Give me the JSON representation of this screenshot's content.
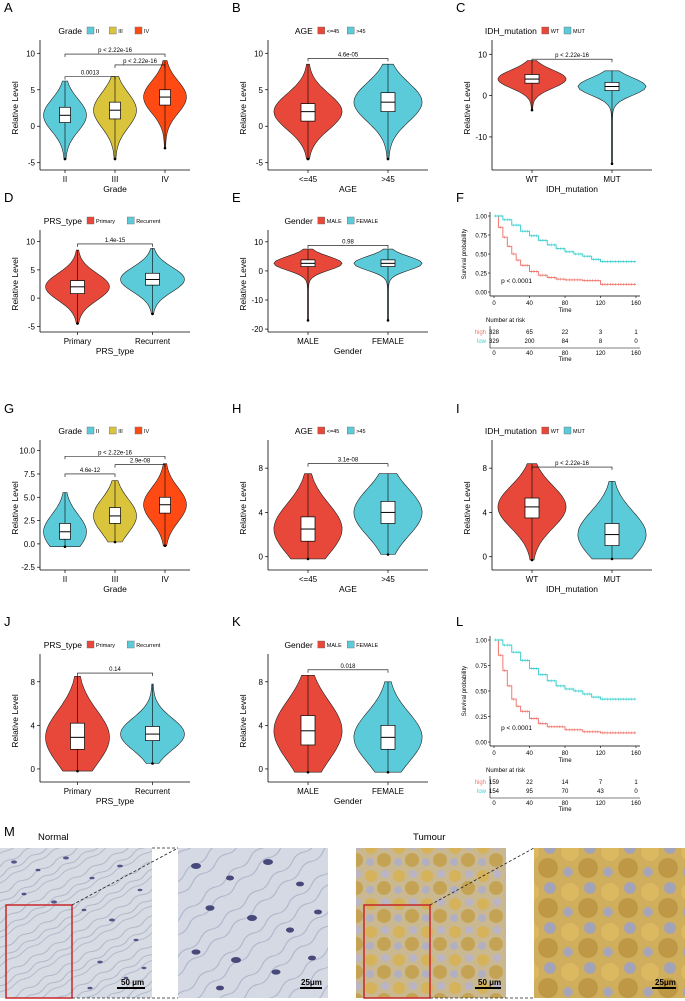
{
  "colors": {
    "red": "#e8483a",
    "gold": "#d9c43c",
    "orange": "#ff4a13",
    "cyan": "#5ccbd9",
    "km_red": "#f07a72",
    "km_cyan": "#41d0cf",
    "stain_brown": "#c79a3a",
    "box_red": "#c8262b"
  },
  "common": {
    "ylabel": "Relative Level"
  },
  "chart_data": [
    {
      "id": "A",
      "type": "violin",
      "title": "Grade",
      "legend": [
        "II",
        "III",
        "IV"
      ],
      "categories": [
        "II",
        "III",
        "IV"
      ],
      "xlabel": "Grade",
      "ylabel": "Relative Level",
      "ylim": [
        -6,
        11
      ],
      "yticks": [
        -5,
        0,
        5,
        10
      ],
      "ytick_labels": [
        "-5",
        "0",
        "5",
        "10"
      ],
      "medians": [
        1.5,
        2.2,
        4.0
      ],
      "q1": [
        0.5,
        1.0,
        2.9
      ],
      "q3": [
        2.6,
        3.3,
        5.0
      ],
      "mins": [
        -4.5,
        -4.5,
        -3.0
      ],
      "maxs": [
        6.2,
        6.8,
        9.0
      ],
      "colors": [
        "#5ccbd9",
        "#d9c43c",
        "#ff4a13"
      ],
      "pvalues": [
        {
          "from": 0,
          "to": 1,
          "label": "0.0013",
          "y": 6.8
        },
        {
          "from": 1,
          "to": 2,
          "label": "p < 2.22e-16",
          "y": 8.4
        },
        {
          "from": 0,
          "to": 2,
          "label": "p < 2.22e-16",
          "y": 9.9
        }
      ]
    },
    {
      "id": "B",
      "type": "violin",
      "title": "AGE",
      "legend": [
        "<=45",
        ">45"
      ],
      "categories": [
        "<=45",
        ">45"
      ],
      "xlabel": "AGE",
      "ylabel": "Relative Level",
      "ylim": [
        -6,
        11
      ],
      "yticks": [
        -5,
        0,
        5,
        10
      ],
      "ytick_labels": [
        "-5",
        "0",
        "5",
        "10"
      ],
      "medians": [
        2.0,
        3.3
      ],
      "q1": [
        0.7,
        2.0
      ],
      "q3": [
        3.1,
        4.6
      ],
      "mins": [
        -4.5,
        -4.5
      ],
      "maxs": [
        8.5,
        8.5
      ],
      "colors": [
        "#e8483a",
        "#5ccbd9"
      ],
      "pvalues": [
        {
          "from": 0,
          "to": 1,
          "label": "4.6e-05",
          "y": 9.3
        }
      ]
    },
    {
      "id": "C",
      "type": "violin",
      "title": "IDH_mutation",
      "legend": [
        "WT",
        "MUT"
      ],
      "categories": [
        "WT",
        "MUT"
      ],
      "xlabel": "IDH_mutation",
      "ylabel": "Relative Level",
      "ylim": [
        -18,
        12
      ],
      "yticks": [
        -10,
        0,
        10
      ],
      "ytick_labels": [
        "-10",
        "0",
        "10"
      ],
      "medians": [
        4.0,
        2.2
      ],
      "q1": [
        3.0,
        1.2
      ],
      "q3": [
        5.1,
        3.2
      ],
      "mins": [
        -3.5,
        -16.5
      ],
      "maxs": [
        8.5,
        6.0
      ],
      "colors": [
        "#e8483a",
        "#5ccbd9"
      ],
      "pvalues": [
        {
          "from": 0,
          "to": 1,
          "label": "p < 2.22e-16",
          "y": 8.8
        }
      ]
    },
    {
      "id": "D",
      "type": "violin",
      "title": "PRS_type",
      "legend": [
        "Primary",
        "Recurrent"
      ],
      "categories": [
        "Primary",
        "Recurrent"
      ],
      "xlabel": "PRS_type",
      "ylabel": "Relative Level",
      "ylim": [
        -6,
        11
      ],
      "yticks": [
        -5,
        0,
        5,
        10
      ],
      "ytick_labels": [
        "-5",
        "0",
        "5",
        "10"
      ],
      "medians": [
        2.0,
        3.3
      ],
      "q1": [
        0.8,
        2.3
      ],
      "q3": [
        3.1,
        4.4
      ],
      "mins": [
        -4.5,
        -2.8
      ],
      "maxs": [
        8.5,
        8.8
      ],
      "colors": [
        "#e8483a",
        "#5ccbd9"
      ],
      "pvalues": [
        {
          "from": 0,
          "to": 1,
          "label": "1.4e-15",
          "y": 9.6
        }
      ]
    },
    {
      "id": "E",
      "type": "violin",
      "title": "Gender",
      "legend": [
        "MALE",
        "FEMALE"
      ],
      "categories": [
        "MALE",
        "FEMALE"
      ],
      "xlabel": "Gender",
      "ylabel": "Relative Level",
      "ylim": [
        -21,
        12
      ],
      "yticks": [
        -20,
        -10,
        0,
        10
      ],
      "ytick_labels": [
        "-20",
        "-10",
        "0",
        "10"
      ],
      "medians": [
        2.6,
        2.6
      ],
      "q1": [
        1.5,
        1.5
      ],
      "q3": [
        3.8,
        3.8
      ],
      "mins": [
        -17.0,
        -17.0
      ],
      "maxs": [
        7.5,
        7.5
      ],
      "colors": [
        "#e8483a",
        "#5ccbd9"
      ],
      "pvalues": [
        {
          "from": 0,
          "to": 1,
          "label": "0.98",
          "y": 8.8
        }
      ]
    },
    {
      "id": "F",
      "type": "km",
      "ylabel": "Survival probability",
      "xlabel": "Time",
      "pvalue": "p < 0.0001",
      "xticks": [
        0,
        40,
        80,
        120,
        160
      ],
      "yticks": [
        0.0,
        0.25,
        0.5,
        0.75,
        1.0
      ],
      "ytick_labels": [
        "0.00",
        "0.25",
        "0.50",
        "0.75",
        "1.00"
      ],
      "series": [
        {
          "name": "high",
          "color": "#f07a72",
          "points": [
            [
              0,
              1
            ],
            [
              5,
              0.85
            ],
            [
              10,
              0.72
            ],
            [
              15,
              0.6
            ],
            [
              20,
              0.5
            ],
            [
              25,
              0.42
            ],
            [
              30,
              0.35
            ],
            [
              40,
              0.27
            ],
            [
              50,
              0.22
            ],
            [
              60,
              0.19
            ],
            [
              70,
              0.17
            ],
            [
              80,
              0.16
            ],
            [
              100,
              0.15
            ],
            [
              120,
              0.1
            ],
            [
              160,
              0.1
            ]
          ]
        },
        {
          "name": "low",
          "color": "#41d0cf",
          "points": [
            [
              0,
              1
            ],
            [
              10,
              0.95
            ],
            [
              20,
              0.88
            ],
            [
              30,
              0.8
            ],
            [
              40,
              0.74
            ],
            [
              50,
              0.68
            ],
            [
              60,
              0.62
            ],
            [
              70,
              0.57
            ],
            [
              80,
              0.53
            ],
            [
              90,
              0.5
            ],
            [
              100,
              0.47
            ],
            [
              110,
              0.43
            ],
            [
              120,
              0.4
            ],
            [
              160,
              0.4
            ]
          ]
        }
      ],
      "risk_title": "Number at risk",
      "risk_labels": [
        "high",
        "low"
      ],
      "risk_table": [
        [
          "328",
          "65",
          "22",
          "3",
          "1"
        ],
        [
          "329",
          "200",
          "84",
          "8",
          "0"
        ]
      ],
      "risk_xlabels": [
        "0",
        "40",
        "80",
        "120",
        "160"
      ],
      "risk_xlabel": "Time"
    },
    {
      "id": "G",
      "type": "violin",
      "title": "Grade",
      "legend": [
        "II",
        "III",
        "IV"
      ],
      "categories": [
        "II",
        "III",
        "IV"
      ],
      "xlabel": "Grade",
      "ylabel": "Relative Level",
      "ylim": [
        -2.8,
        10.5
      ],
      "yticks": [
        -2.5,
        0,
        2.5,
        5,
        7.5,
        10
      ],
      "ytick_labels": [
        "-2.5",
        "0.0",
        "2.5",
        "5.0",
        "7.5",
        "10.0"
      ],
      "medians": [
        1.3,
        3.0,
        4.2
      ],
      "q1": [
        0.5,
        2.2,
        3.3
      ],
      "q3": [
        2.2,
        3.9,
        5.0
      ],
      "mins": [
        -0.3,
        0.2,
        -0.2
      ],
      "maxs": [
        5.5,
        6.8,
        8.6
      ],
      "colors": [
        "#5ccbd9",
        "#d9c43c",
        "#ff4a13"
      ],
      "pvalues": [
        {
          "from": 0,
          "to": 1,
          "label": "4.6e-12",
          "y": 7.5
        },
        {
          "from": 1,
          "to": 2,
          "label": "2.9e-08",
          "y": 8.5
        },
        {
          "from": 0,
          "to": 2,
          "label": "p < 2.22e-16",
          "y": 9.4
        }
      ]
    },
    {
      "id": "H",
      "type": "violin",
      "title": "AGE",
      "legend": [
        "<=45",
        ">45"
      ],
      "categories": [
        "<=45",
        ">45"
      ],
      "xlabel": "AGE",
      "ylabel": "Relative Level",
      "ylim": [
        -1.2,
        10
      ],
      "yticks": [
        0,
        4,
        8
      ],
      "ytick_labels": [
        "0",
        "4",
        "8"
      ],
      "medians": [
        2.5,
        4.0
      ],
      "q1": [
        1.4,
        3.0
      ],
      "q3": [
        3.6,
        5.0
      ],
      "mins": [
        -0.2,
        0.2
      ],
      "maxs": [
        7.5,
        7.5
      ],
      "colors": [
        "#e8483a",
        "#5ccbd9"
      ],
      "pvalues": [
        {
          "from": 0,
          "to": 1,
          "label": "3.1e-08",
          "y": 8.4
        }
      ]
    },
    {
      "id": "I",
      "type": "violin",
      "title": "IDH_mutation",
      "legend": [
        "WT",
        "MUT"
      ],
      "categories": [
        "WT",
        "MUT"
      ],
      "xlabel": "IDH_mutation",
      "ylabel": "Relative Level",
      "ylim": [
        -1.2,
        10
      ],
      "yticks": [
        0,
        4,
        8
      ],
      "ytick_labels": [
        "0",
        "4",
        "8"
      ],
      "medians": [
        4.5,
        2.0
      ],
      "q1": [
        3.5,
        1.0
      ],
      "q3": [
        5.3,
        3.0
      ],
      "mins": [
        -0.3,
        -0.2
      ],
      "maxs": [
        8.4,
        6.8
      ],
      "colors": [
        "#e8483a",
        "#5ccbd9"
      ],
      "pvalues": [
        {
          "from": 0,
          "to": 1,
          "label": "p < 2.22e-16",
          "y": 8.1
        }
      ]
    },
    {
      "id": "J",
      "type": "violin",
      "title": "PRS_type",
      "legend": [
        "Primary",
        "Recurrent"
      ],
      "categories": [
        "Primary",
        "Recurrent"
      ],
      "xlabel": "PRS_type",
      "ylabel": "Relative Level",
      "ylim": [
        -1.2,
        10
      ],
      "yticks": [
        0,
        4,
        8
      ],
      "ytick_labels": [
        "0",
        "4",
        "8"
      ],
      "medians": [
        2.9,
        3.2
      ],
      "q1": [
        1.8,
        2.6
      ],
      "q3": [
        4.2,
        3.9
      ],
      "mins": [
        -0.2,
        0.5
      ],
      "maxs": [
        8.5,
        7.8
      ],
      "colors": [
        "#e8483a",
        "#5ccbd9"
      ],
      "pvalues": [
        {
          "from": 0,
          "to": 1,
          "label": "0.14",
          "y": 8.8
        }
      ]
    },
    {
      "id": "K",
      "type": "violin",
      "title": "Gender",
      "legend": [
        "MALE",
        "FEMALE"
      ],
      "categories": [
        "MALE",
        "FEMALE"
      ],
      "xlabel": "Gender",
      "ylabel": "Relative Level",
      "ylim": [
        -1.2,
        10
      ],
      "yticks": [
        0,
        4,
        8
      ],
      "ytick_labels": [
        "0",
        "4",
        "8"
      ],
      "medians": [
        3.5,
        2.9
      ],
      "q1": [
        2.2,
        1.8
      ],
      "q3": [
        4.9,
        4.0
      ],
      "mins": [
        -0.3,
        -0.3
      ],
      "maxs": [
        8.6,
        8.0
      ],
      "colors": [
        "#e8483a",
        "#5ccbd9"
      ],
      "pvalues": [
        {
          "from": 0,
          "to": 1,
          "label": "0.018",
          "y": 9.1
        }
      ]
    },
    {
      "id": "L",
      "type": "km",
      "ylabel": "Survival probability",
      "xlabel": "Time",
      "pvalue": "p < 0.0001",
      "xticks": [
        0,
        40,
        80,
        120,
        160
      ],
      "yticks": [
        0.0,
        0.25,
        0.5,
        0.75,
        1.0
      ],
      "ytick_labels": [
        "0.00",
        "0.25",
        "0.50",
        "0.75",
        "1.00"
      ],
      "series": [
        {
          "name": "high",
          "color": "#f07a72",
          "points": [
            [
              0,
              1
            ],
            [
              5,
              0.85
            ],
            [
              10,
              0.7
            ],
            [
              15,
              0.55
            ],
            [
              20,
              0.42
            ],
            [
              25,
              0.35
            ],
            [
              30,
              0.3
            ],
            [
              40,
              0.23
            ],
            [
              50,
              0.18
            ],
            [
              60,
              0.15
            ],
            [
              80,
              0.12
            ],
            [
              100,
              0.1
            ],
            [
              120,
              0.09
            ],
            [
              160,
              0.09
            ]
          ]
        },
        {
          "name": "low",
          "color": "#41d0cf",
          "points": [
            [
              0,
              1
            ],
            [
              10,
              0.95
            ],
            [
              20,
              0.88
            ],
            [
              30,
              0.8
            ],
            [
              40,
              0.72
            ],
            [
              50,
              0.66
            ],
            [
              60,
              0.6
            ],
            [
              70,
              0.55
            ],
            [
              80,
              0.52
            ],
            [
              90,
              0.5
            ],
            [
              100,
              0.47
            ],
            [
              110,
              0.44
            ],
            [
              120,
              0.42
            ],
            [
              160,
              0.42
            ]
          ]
        }
      ],
      "risk_title": "Number at risk",
      "risk_labels": [
        "high",
        "low"
      ],
      "risk_table": [
        [
          "159",
          "22",
          "14",
          "7",
          "1"
        ],
        [
          "154",
          "95",
          "70",
          "43",
          "0"
        ]
      ],
      "risk_xlabels": [
        "0",
        "40",
        "80",
        "120",
        "160"
      ],
      "risk_xlabel": "Time"
    }
  ],
  "panel_m": {
    "label": "M",
    "normal_title": "Normal",
    "tumour_title": "Tumour",
    "scale_50": "50 μm",
    "scale_25": "25μm",
    "scale_50b": "50 μm",
    "scale_25b": "25μm"
  }
}
